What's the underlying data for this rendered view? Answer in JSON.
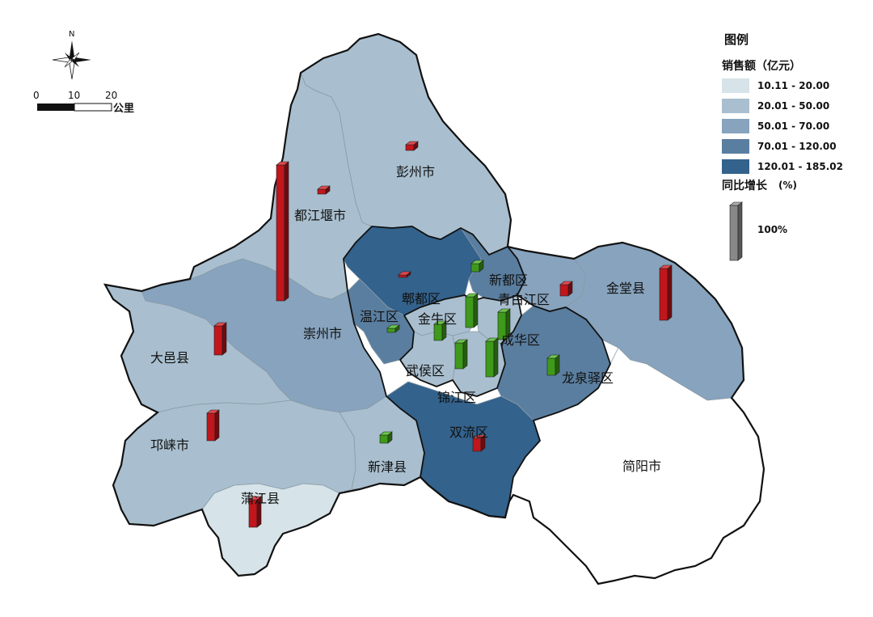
{
  "north_label": "N",
  "scale": {
    "ticks": [
      "0",
      "10",
      "20"
    ],
    "unit": "公里"
  },
  "legend": {
    "title": "图例",
    "fill_title": "销售额（亿元）",
    "classes": [
      {
        "label": "10.11 - 20.00",
        "color": "#d6e3e8"
      },
      {
        "label": "20.01 - 50.00",
        "color": "#a9bfcf"
      },
      {
        "label": "50.01 - 70.00",
        "color": "#87a3bd"
      },
      {
        "label": "70.01 - 120.00",
        "color": "#5a7e9f"
      },
      {
        "label": "120.01 - 185.02",
        "color": "#33628c"
      }
    ],
    "growth_title": "同比增长",
    "growth_unit": "(%)",
    "growth_ref": "100%"
  },
  "bar_colors": {
    "positive": "#c0161c",
    "negative": "#3e9a1a",
    "reference": "#888888"
  },
  "districts": [
    {
      "name": "彭州市",
      "class": 1
    },
    {
      "name": "都江堰市",
      "class": 1
    },
    {
      "name": "崇州市",
      "class": 2
    },
    {
      "name": "大邑县",
      "class": 1
    },
    {
      "name": "邛崃市",
      "class": 1
    },
    {
      "name": "蒲江县",
      "class": 0
    },
    {
      "name": "新津县",
      "class": 1
    },
    {
      "name": "双流区",
      "class": 4
    },
    {
      "name": "郫都区",
      "class": 4
    },
    {
      "name": "新都区",
      "class": 3
    },
    {
      "name": "温江区",
      "class": 3
    },
    {
      "name": "金牛区",
      "class": 1
    },
    {
      "name": "青白江区",
      "class": 2
    },
    {
      "name": "成华区",
      "class": 1
    },
    {
      "name": "武侯区",
      "class": 1
    },
    {
      "name": "锦江区",
      "class": 1
    },
    {
      "name": "龙泉驿区",
      "class": 3
    },
    {
      "name": "金堂县",
      "class": 2
    },
    {
      "name": "简阳市",
      "class": -1
    }
  ]
}
